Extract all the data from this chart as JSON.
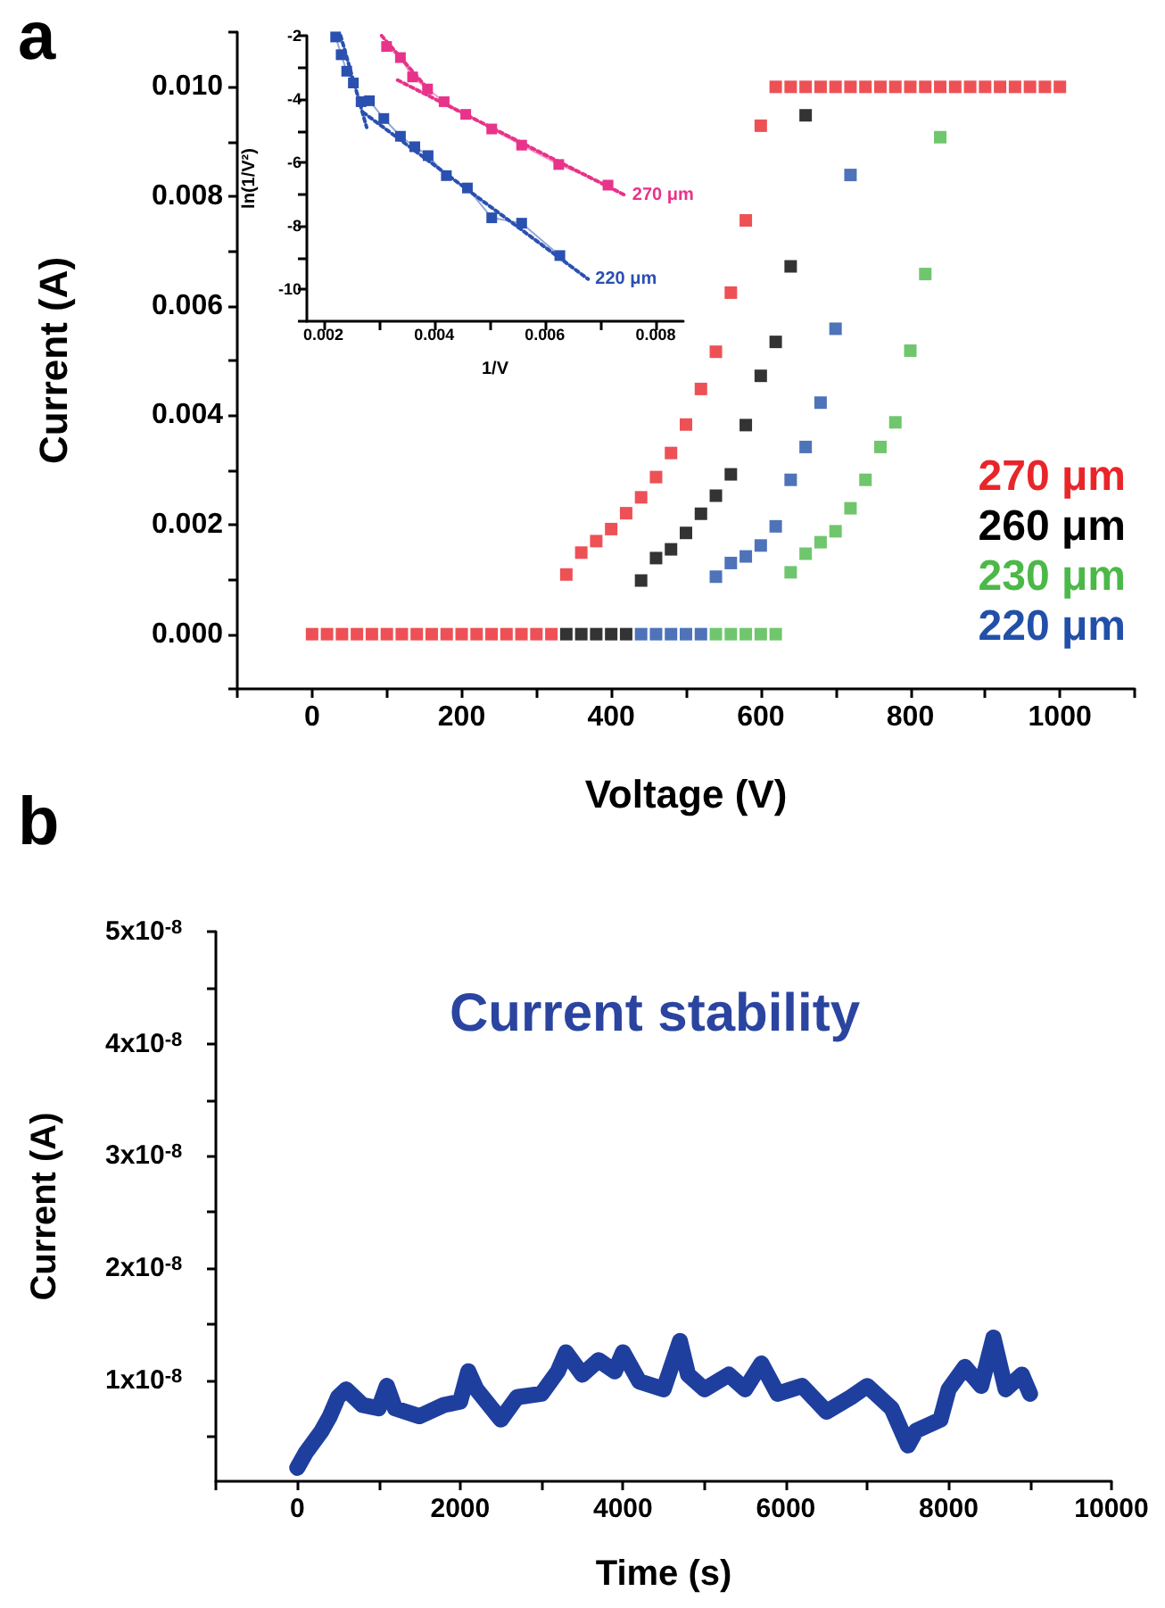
{
  "chart_data": [
    {
      "type": "scatter",
      "xlabel": "Voltage (V)",
      "ylabel": "Current (A)",
      "annotations": [
        "a"
      ],
      "marker": "square",
      "legend": "right",
      "grid": false,
      "xlim": [
        -100,
        1100
      ],
      "xticks": [
        0,
        200,
        400,
        600,
        800,
        1000
      ],
      "ylim": [
        -0.001,
        0.011
      ],
      "yticks": [
        {
          "value": 0,
          "label": "0.000"
        },
        {
          "value": 0.002,
          "label": "0.002"
        },
        {
          "value": 0.004,
          "label": "0.004"
        },
        {
          "value": 0.006,
          "label": "0.006"
        },
        {
          "value": 0.008,
          "label": "0.008"
        },
        {
          "value": 0.01,
          "label": "0.010"
        }
      ],
      "series": [
        {
          "name": "270 μm",
          "color": "#e8262a",
          "x": [
            0,
            20,
            40,
            60,
            80,
            100,
            120,
            140,
            160,
            180,
            200,
            220,
            240,
            260,
            280,
            300,
            320,
            340,
            360,
            380,
            400,
            420,
            440,
            460,
            480,
            500,
            520,
            540,
            560,
            580,
            600,
            620,
            640,
            660,
            680,
            700,
            720,
            740,
            760,
            780,
            800,
            820,
            840,
            860,
            880,
            900,
            920,
            940,
            960,
            980,
            1000
          ],
          "values": [
            0,
            0,
            0,
            0,
            0,
            0,
            0,
            0,
            0,
            0,
            0,
            0,
            0,
            0,
            0,
            0,
            0,
            0.00109,
            0.00149,
            0.0017,
            0.00192,
            0.00221,
            0.0025,
            0.00287,
            0.00331,
            0.00383,
            0.00448,
            0.00516,
            0.00624,
            0.00756,
            0.00929,
            0.01,
            0.01,
            0.01,
            0.01,
            0.01,
            0.01,
            0.01,
            0.01,
            0.01,
            0.01,
            0.01,
            0.01,
            0.01,
            0.01,
            0.01,
            0.01,
            0.01,
            0.01,
            0.01,
            0.01
          ]
        },
        {
          "name": "260 μm",
          "color": "#000000",
          "x": [
            340,
            360,
            380,
            400,
            420,
            440,
            460,
            480,
            500,
            520,
            540,
            560,
            580,
            600,
            620,
            640,
            660
          ],
          "values": [
            0,
            0,
            0,
            0,
            0,
            0.00098,
            0.00139,
            0.00155,
            0.00185,
            0.0022,
            0.00253,
            0.00292,
            0.00382,
            0.00472,
            0.00534,
            0.00672,
            0.00948
          ]
        },
        {
          "name": "230 μm",
          "color": "#4cb848",
          "x": [
            540,
            560,
            580,
            600,
            620,
            640,
            660,
            680,
            700,
            720,
            740,
            760,
            780,
            800,
            820,
            840
          ],
          "values": [
            0,
            0,
            0,
            0,
            0,
            0.00113,
            0.00147,
            0.00168,
            0.00188,
            0.0023,
            0.00282,
            0.00342,
            0.00387,
            0.00518,
            0.00658,
            0.00908
          ]
        },
        {
          "name": "220 μm",
          "color": "#2250a8",
          "x": [
            440,
            460,
            480,
            500,
            520,
            540,
            560,
            580,
            600,
            620,
            640,
            660,
            680,
            700,
            720
          ],
          "values": [
            0,
            0,
            0,
            0,
            0,
            0.00105,
            0.0013,
            0.00142,
            0.00162,
            0.00197,
            0.00282,
            0.00342,
            0.00423,
            0.00558,
            0.00839
          ]
        }
      ]
    },
    {
      "type": "line",
      "xlabel": "1/V",
      "ylabel": "ln(1/V²)",
      "legend": false,
      "grid": false,
      "xlim": [
        0.0017,
        0.0085
      ],
      "xticks": [
        0.002,
        0.004,
        0.006,
        0.008
      ],
      "ylim": [
        -11,
        -2
      ],
      "yticks": [
        -2,
        -4,
        -6,
        -8,
        -10
      ],
      "series": [
        {
          "color": "#e8338a",
          "marker": "square",
          "line_style": "solid",
          "x": [
            0.00314,
            0.00339,
            0.00361,
            0.00388,
            0.00418,
            0.00457,
            0.00504,
            0.00558,
            0.00625,
            0.00714
          ],
          "values": [
            -2.34,
            -2.69,
            -3.3,
            -3.68,
            -4.08,
            -4.48,
            -4.94,
            -5.45,
            -6.06,
            -6.71
          ]
        },
        {
          "color": "#e8338a",
          "marker": "none",
          "line_style": "dotted",
          "x": [
            0.00305,
            0.00394
          ],
          "values": [
            -2,
            -3.79
          ]
        },
        {
          "name": "270 μm",
          "color": "#e8338a",
          "marker": "none",
          "line_style": "dotted",
          "x": [
            0.00334,
            0.00745
          ],
          "values": [
            -3.4,
            -7.03
          ]
        },
        {
          "color": "#2a50b0",
          "marker": "square",
          "line_style": "solid",
          "x": [
            0.00222,
            0.00232,
            0.00242,
            0.00254,
            0.00268,
            0.00283,
            0.00309,
            0.00339,
            0.00365,
            0.00389,
            0.00422,
            0.0046,
            0.00504,
            0.00558,
            0.00627
          ],
          "values": [
            -2.04,
            -2.6,
            -3.12,
            -3.49,
            -4.08,
            -4.05,
            -4.61,
            -5.17,
            -5.5,
            -5.78,
            -6.41,
            -6.8,
            -7.74,
            -7.91,
            -8.93
          ]
        },
        {
          "color": "#2a50b0",
          "marker": "none",
          "line_style": "dotted",
          "x": [
            0.00231,
            0.00278
          ],
          "values": [
            -2,
            -4.89
          ]
        },
        {
          "name": "220 μm",
          "color": "#2a50b0",
          "marker": "none",
          "line_style": "dotted",
          "x": [
            0.00272,
            0.00678
          ],
          "values": [
            -4.42,
            -9.67
          ]
        }
      ]
    },
    {
      "type": "line",
      "title": "Current stability",
      "xlabel": "Time (s)",
      "ylabel": "Current (A)",
      "annotations": [
        "b"
      ],
      "legend": false,
      "grid": false,
      "marker": "none",
      "line_style": "solid",
      "xlim": [
        -1000,
        10000
      ],
      "xticks": [
        0,
        2000,
        4000,
        6000,
        8000,
        10000
      ],
      "ylim": [
        1e-09,
        5e-08
      ],
      "yticks": [
        {
          "value": 1e-08,
          "label": "1x10$^{-8}$"
        },
        {
          "value": 2e-08,
          "label": "2x10$^{-8}$"
        },
        {
          "value": 3e-08,
          "label": "3x10$^{-8}$"
        },
        {
          "value": 4e-08,
          "label": "4x10$^{-8}$"
        },
        {
          "value": 5e-08,
          "label": "5x10$^{-8}$"
        }
      ],
      "series": [
        {
          "color": "#1f3f9f",
          "x": [
            0,
            100,
            200,
            300,
            400,
            500,
            600,
            800,
            1000,
            1100,
            1200,
            1500,
            1800,
            2000,
            2100,
            2200,
            2500,
            2700,
            3000,
            3200,
            3300,
            3500,
            3700,
            3900,
            4000,
            4200,
            4500,
            4700,
            4800,
            5000,
            5300,
            5500,
            5700,
            5900,
            6200,
            6500,
            6800,
            7000,
            7300,
            7500,
            7600,
            7900,
            8000,
            8200,
            8400,
            8550,
            8700,
            8900,
            9000
          ],
          "values": [
            2.2e-09,
            3.5e-09,
            4.5e-09,
            5.5e-09,
            6.8e-09,
            8.5e-09,
            9.2e-09,
            7.8e-09,
            7.5e-09,
            9.5e-09,
            7.5e-09,
            6.8e-09,
            7.8e-09,
            8.1e-09,
            1.08e-08,
            9.2e-09,
            6.5e-09,
            8.5e-09,
            8.8e-09,
            1.08e-08,
            1.25e-08,
            1.05e-08,
            1.18e-08,
            1.08e-08,
            1.25e-08,
            9.9e-09,
            9.2e-09,
            1.35e-08,
            1.05e-08,
            9.2e-09,
            1.05e-08,
            9.2e-09,
            1.15e-08,
            8.8e-09,
            9.5e-09,
            7.2e-09,
            8.5e-09,
            9.5e-09,
            7.5e-09,
            4.2e-09,
            5.5e-09,
            6.5e-09,
            9.2e-09,
            1.12e-08,
            9.5e-09,
            1.38e-08,
            9.2e-09,
            1.05e-08,
            8.8e-09
          ]
        }
      ]
    }
  ]
}
